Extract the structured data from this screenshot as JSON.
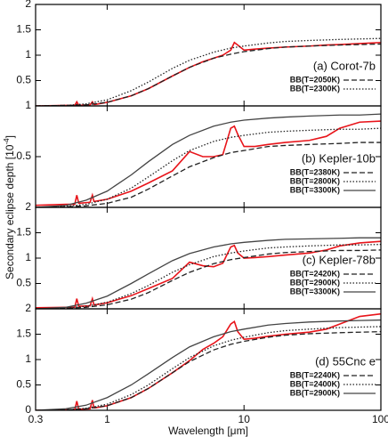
{
  "ylabel": "Secondary eclipse depth [10$^{-4}$]",
  "chart_data": [
    {
      "type": "line",
      "label": "(a) Corot-7b",
      "xscale": "log",
      "xlim": [
        0.3,
        100
      ],
      "xticks": [
        0.3,
        1,
        10,
        100
      ],
      "ylim": [
        0,
        2
      ],
      "yticks": [
        0.5,
        1,
        1.5,
        2
      ],
      "legend": "lower right",
      "series": [
        {
          "color": "#e8141a",
          "style": "solid",
          "x": [
            0.3,
            0.5,
            0.58,
            0.6,
            0.62,
            0.75,
            0.78,
            0.8,
            0.82,
            1,
            1.5,
            2,
            3,
            4,
            5,
            6,
            7,
            8,
            8.5,
            9,
            10,
            12,
            15,
            20,
            30,
            40,
            50,
            70,
            100
          ],
          "values": [
            0,
            0.01,
            0.01,
            0.08,
            0.01,
            0.02,
            0.08,
            0.03,
            0.03,
            0.07,
            0.2,
            0.34,
            0.59,
            0.76,
            0.87,
            0.94,
            1.0,
            1.1,
            1.25,
            1.2,
            1.1,
            1.12,
            1.14,
            1.16,
            1.18,
            1.2,
            1.21,
            1.23,
            1.25
          ]
        },
        {
          "name": "BB(T=2050K)",
          "color": "#222222",
          "style": "dashed",
          "x": [
            0.3,
            0.5,
            0.7,
            1,
            1.5,
            2,
            3,
            4,
            6,
            8,
            10,
            15,
            20,
            30,
            50,
            70,
            100
          ],
          "values": [
            0,
            0.01,
            0.02,
            0.07,
            0.2,
            0.34,
            0.59,
            0.76,
            0.94,
            1.02,
            1.07,
            1.13,
            1.16,
            1.18,
            1.2,
            1.21,
            1.22
          ]
        },
        {
          "name": "BB(T=2300K)",
          "color": "#222222",
          "style": "dotted",
          "x": [
            0.3,
            0.5,
            0.7,
            1,
            1.5,
            2,
            3,
            4,
            6,
            8,
            10,
            15,
            20,
            30,
            50,
            70,
            100
          ],
          "values": [
            0,
            0.01,
            0.04,
            0.12,
            0.3,
            0.47,
            0.74,
            0.9,
            1.06,
            1.14,
            1.18,
            1.24,
            1.27,
            1.29,
            1.31,
            1.32,
            1.33
          ]
        }
      ]
    },
    {
      "type": "line",
      "label": "(b) Kepler-10b",
      "xscale": "log",
      "xlim": [
        0.3,
        100
      ],
      "xticks": [
        0.3,
        1,
        10,
        100
      ],
      "ylim": [
        0,
        1
      ],
      "yticks": [
        0.5,
        1
      ],
      "legend": "lower right",
      "series": [
        {
          "color": "#e8141a",
          "style": "solid",
          "x": [
            0.3,
            0.5,
            0.58,
            0.6,
            0.62,
            0.75,
            0.78,
            0.8,
            0.82,
            1,
            1.5,
            2,
            3,
            4,
            5,
            6,
            7,
            8,
            8.5,
            9,
            10,
            12,
            15,
            20,
            30,
            40,
            50,
            70,
            100
          ],
          "values": [
            0.02,
            0.03,
            0.03,
            0.12,
            0.04,
            0.05,
            0.12,
            0.06,
            0.06,
            0.08,
            0.16,
            0.24,
            0.36,
            0.55,
            0.5,
            0.5,
            0.52,
            0.78,
            0.8,
            0.72,
            0.6,
            0.6,
            0.62,
            0.64,
            0.66,
            0.7,
            0.78,
            0.84,
            0.85
          ]
        },
        {
          "name": "BB(T=2380K)",
          "color": "#222222",
          "style": "dashed",
          "x": [
            0.3,
            0.5,
            0.7,
            1,
            1.5,
            2,
            3,
            4,
            6,
            8,
            10,
            15,
            20,
            30,
            50,
            70,
            100
          ],
          "values": [
            0,
            0.005,
            0.015,
            0.04,
            0.1,
            0.18,
            0.31,
            0.4,
            0.49,
            0.54,
            0.56,
            0.6,
            0.61,
            0.62,
            0.63,
            0.64,
            0.64
          ]
        },
        {
          "name": "BB(T=2800K)",
          "color": "#222222",
          "style": "dotted",
          "x": [
            0.3,
            0.5,
            0.7,
            1,
            1.5,
            2,
            3,
            4,
            6,
            8,
            10,
            15,
            20,
            30,
            50,
            70,
            100
          ],
          "values": [
            0,
            0.01,
            0.03,
            0.08,
            0.19,
            0.3,
            0.46,
            0.56,
            0.65,
            0.69,
            0.71,
            0.74,
            0.75,
            0.76,
            0.77,
            0.77,
            0.78
          ]
        },
        {
          "name": "BB(T=3300K)",
          "color": "#444444",
          "style": "solid",
          "x": [
            0.3,
            0.5,
            0.7,
            1,
            1.5,
            2,
            3,
            4,
            6,
            8,
            10,
            15,
            20,
            30,
            50,
            70,
            100
          ],
          "values": [
            0,
            0.02,
            0.07,
            0.16,
            0.32,
            0.45,
            0.62,
            0.71,
            0.8,
            0.84,
            0.86,
            0.88,
            0.89,
            0.9,
            0.91,
            0.91,
            0.92
          ]
        }
      ]
    },
    {
      "type": "line",
      "label": "(c) Kepler-78b",
      "xscale": "log",
      "xlim": [
        0.3,
        100
      ],
      "xticks": [
        0.3,
        1,
        10,
        100
      ],
      "ylim": [
        0,
        2
      ],
      "yticks": [
        0.5,
        1,
        1.5,
        2
      ],
      "legend": "lower right",
      "series": [
        {
          "color": "#e8141a",
          "style": "solid",
          "x": [
            0.3,
            0.5,
            0.58,
            0.6,
            0.62,
            0.75,
            0.78,
            0.8,
            0.82,
            1,
            1.5,
            2,
            3,
            4,
            5,
            6,
            7,
            8,
            8.5,
            9,
            10,
            12,
            15,
            20,
            30,
            40,
            50,
            70,
            100
          ],
          "values": [
            0.02,
            0.03,
            0.03,
            0.2,
            0.05,
            0.06,
            0.2,
            0.08,
            0.08,
            0.12,
            0.26,
            0.4,
            0.6,
            0.92,
            0.85,
            0.83,
            0.9,
            1.22,
            1.25,
            1.1,
            1.0,
            1.01,
            1.03,
            1.06,
            1.1,
            1.16,
            1.24,
            1.3,
            1.33
          ]
        },
        {
          "name": "BB(T=2420K)",
          "color": "#222222",
          "style": "dashed",
          "x": [
            0.3,
            0.5,
            0.7,
            1,
            1.5,
            2,
            3,
            4,
            6,
            8,
            10,
            15,
            20,
            30,
            50,
            70,
            100
          ],
          "values": [
            0,
            0.01,
            0.03,
            0.08,
            0.19,
            0.32,
            0.56,
            0.72,
            0.89,
            0.97,
            1.01,
            1.08,
            1.11,
            1.13,
            1.15,
            1.15,
            1.16
          ]
        },
        {
          "name": "BB(T=2900K)",
          "color": "#222222",
          "style": "dotted",
          "x": [
            0.3,
            0.5,
            0.7,
            1,
            1.5,
            2,
            3,
            4,
            6,
            8,
            10,
            15,
            20,
            30,
            50,
            70,
            100
          ],
          "values": [
            0,
            0.02,
            0.05,
            0.13,
            0.3,
            0.46,
            0.72,
            0.87,
            1.03,
            1.1,
            1.14,
            1.2,
            1.22,
            1.24,
            1.26,
            1.26,
            1.27
          ]
        },
        {
          "name": "BB(T=3300K)",
          "color": "#444444",
          "style": "solid",
          "x": [
            0.3,
            0.5,
            0.7,
            1,
            1.5,
            2,
            3,
            4,
            6,
            8,
            10,
            15,
            20,
            30,
            50,
            70,
            100
          ],
          "values": [
            0,
            0.03,
            0.11,
            0.25,
            0.5,
            0.69,
            0.95,
            1.09,
            1.22,
            1.28,
            1.31,
            1.35,
            1.37,
            1.38,
            1.39,
            1.4,
            1.4
          ]
        }
      ]
    },
    {
      "type": "line",
      "label": "(d) 55Cnc e",
      "xscale": "log",
      "xlim": [
        0.3,
        100
      ],
      "xticks": [
        0.3,
        1,
        10,
        100
      ],
      "xlabel": "Wavelength [$\\mu$m]",
      "ylim": [
        0,
        2
      ],
      "yticks": [
        0,
        0.5,
        1,
        1.5,
        2
      ],
      "legend": "lower right",
      "series": [
        {
          "color": "#e8141a",
          "style": "solid",
          "x": [
            0.3,
            0.5,
            0.58,
            0.6,
            0.62,
            0.75,
            0.78,
            0.8,
            0.82,
            1,
            1.5,
            2,
            3,
            4,
            5,
            6,
            7,
            8,
            8.5,
            9,
            10,
            12,
            15,
            20,
            30,
            40,
            50,
            70,
            100
          ],
          "values": [
            0,
            0.01,
            0.01,
            0.18,
            0.02,
            0.03,
            0.2,
            0.05,
            0.05,
            0.09,
            0.25,
            0.43,
            0.74,
            0.98,
            1.2,
            1.32,
            1.45,
            1.7,
            1.75,
            1.55,
            1.4,
            1.42,
            1.46,
            1.5,
            1.54,
            1.6,
            1.7,
            1.85,
            1.9
          ]
        },
        {
          "name": "BB(T=2240K)",
          "color": "#222222",
          "style": "dashed",
          "x": [
            0.3,
            0.5,
            0.7,
            1,
            1.5,
            2,
            3,
            4,
            6,
            8,
            10,
            15,
            20,
            30,
            50,
            70,
            100
          ],
          "values": [
            0,
            0.01,
            0.03,
            0.09,
            0.25,
            0.43,
            0.74,
            0.96,
            1.19,
            1.3,
            1.36,
            1.44,
            1.48,
            1.51,
            1.53,
            1.54,
            1.55
          ]
        },
        {
          "name": "BB(T=2400K)",
          "color": "#222222",
          "style": "dotted",
          "x": [
            0.3,
            0.5,
            0.7,
            1,
            1.5,
            2,
            3,
            4,
            6,
            8,
            10,
            15,
            20,
            30,
            50,
            70,
            100
          ],
          "values": [
            0,
            0.01,
            0.04,
            0.12,
            0.31,
            0.5,
            0.82,
            1.04,
            1.27,
            1.38,
            1.44,
            1.53,
            1.57,
            1.6,
            1.63,
            1.64,
            1.65
          ]
        },
        {
          "name": "BB(T=2900K)",
          "color": "#444444",
          "style": "solid",
          "x": [
            0.3,
            0.5,
            0.7,
            1,
            1.5,
            2,
            3,
            4,
            6,
            8,
            10,
            15,
            20,
            30,
            50,
            70,
            100
          ],
          "values": [
            0,
            0.03,
            0.1,
            0.25,
            0.5,
            0.72,
            1.04,
            1.25,
            1.45,
            1.55,
            1.6,
            1.68,
            1.71,
            1.74,
            1.76,
            1.77,
            1.78
          ]
        }
      ]
    }
  ]
}
